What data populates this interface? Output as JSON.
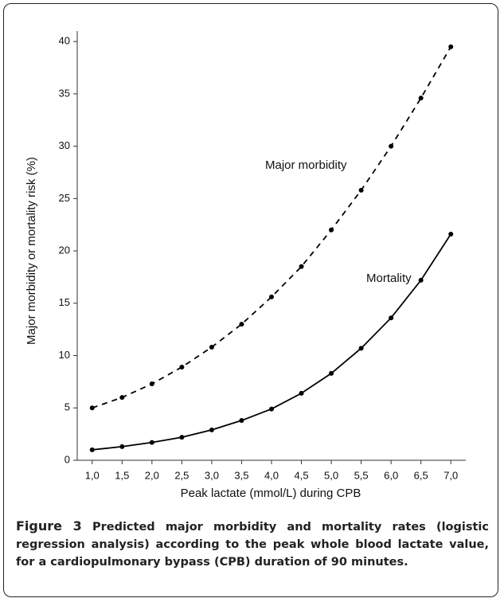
{
  "chart_data": {
    "type": "line",
    "xlabel": "Peak lactate (mmol/L) during CPB",
    "ylabel": "Major morbidity or mortality risk (%)",
    "x": [
      1.0,
      1.5,
      2.0,
      2.5,
      3.0,
      3.5,
      4.0,
      4.5,
      5.0,
      5.5,
      6.0,
      6.5,
      7.0
    ],
    "series": [
      {
        "name": "Major morbidity",
        "color": "#000000",
        "style": "dashed",
        "values": [
          5.0,
          6.0,
          7.3,
          8.9,
          10.8,
          13.0,
          15.6,
          18.5,
          22.0,
          25.8,
          30.0,
          34.6,
          39.5
        ]
      },
      {
        "name": "Mortality",
        "color": "#000000",
        "style": "solid",
        "values": [
          1.0,
          1.3,
          1.7,
          2.2,
          2.9,
          3.8,
          4.9,
          6.4,
          8.3,
          10.7,
          13.6,
          17.2,
          21.6
        ]
      }
    ],
    "xlim": [
      0.75,
      7.25
    ],
    "ylim": [
      0,
      41
    ],
    "xticks": [
      {
        "value": 1.0,
        "label": "1,0"
      },
      {
        "value": 1.5,
        "label": "1,5"
      },
      {
        "value": 2.0,
        "label": "2,0"
      },
      {
        "value": 2.5,
        "label": "2,5"
      },
      {
        "value": 3.0,
        "label": "3,0"
      },
      {
        "value": 3.5,
        "label": "3,5"
      },
      {
        "value": 4.0,
        "label": "4,0"
      },
      {
        "value": 4.5,
        "label": "4,5"
      },
      {
        "value": 5.0,
        "label": "5,0"
      },
      {
        "value": 5.5,
        "label": "5,5"
      },
      {
        "value": 6.0,
        "label": "6,0"
      },
      {
        "value": 6.5,
        "label": "6,5"
      },
      {
        "value": 7.0,
        "label": "7,0"
      }
    ],
    "yticks": [
      0,
      5,
      10,
      15,
      20,
      25,
      30,
      35,
      40
    ],
    "grid": false
  },
  "caption": {
    "label": "Figure 3",
    "text": "Predicted major morbidity and mortality rates (logistic regression analysis) according to the peak whole blood lactate value, for a cardiopulmonary bypass (CPB) duration of 90 minutes."
  }
}
